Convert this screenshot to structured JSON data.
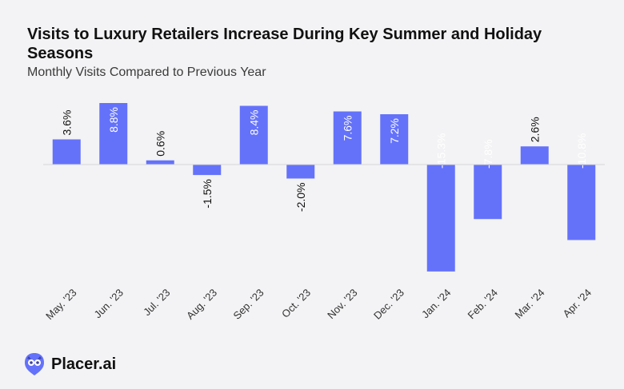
{
  "title": "Visits to Luxury Retailers Increase During Key Summer and Holiday Seasons",
  "subtitle": "Monthly Visits Compared to Previous Year",
  "brand": {
    "name": "Placer.ai"
  },
  "colors": {
    "bar": "#6472fa",
    "axis": "#d6d6d6",
    "label": "#111111",
    "label_inside": "#ffffff",
    "background": "#f3f3f5"
  },
  "chart_data": {
    "type": "bar",
    "categories": [
      "May. '23",
      "Jun. '23",
      "Jul. '23",
      "Aug. '23",
      "Sep. '23",
      "Oct. '23",
      "Nov. '23",
      "Dec. '23",
      "Jan. '24",
      "Feb. '24",
      "Mar. '24",
      "Apr. '24"
    ],
    "values": [
      3.6,
      8.8,
      0.6,
      -1.5,
      8.4,
      -2.0,
      7.6,
      7.2,
      -15.3,
      -7.8,
      2.6,
      -10.8
    ],
    "labels": [
      "3.6%",
      "8.8%",
      "0.6%",
      "-1.5%",
      "8.4%",
      "-2.0%",
      "7.6%",
      "7.2%",
      "-15.3%",
      "-7.8%",
      "2.6%",
      "-10.8%"
    ],
    "label_inside": [
      false,
      true,
      false,
      false,
      true,
      false,
      true,
      true,
      true,
      true,
      false,
      true
    ],
    "ylim": [
      -15.3,
      8.8
    ],
    "grid": false,
    "legend": "none"
  }
}
